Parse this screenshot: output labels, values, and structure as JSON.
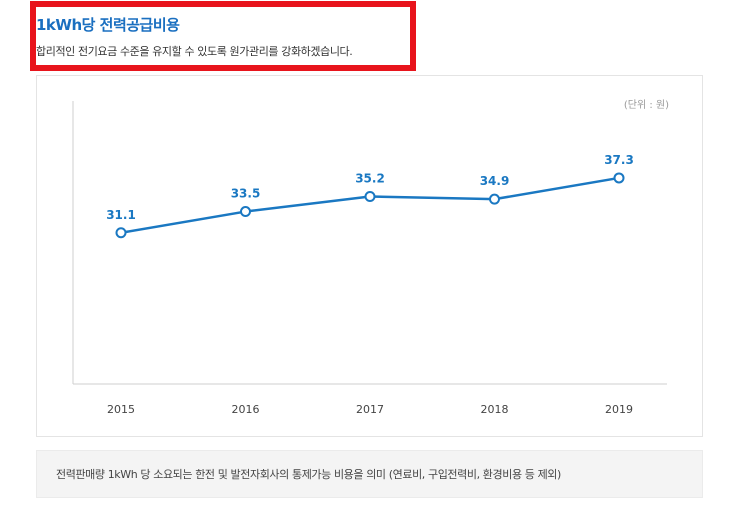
{
  "header": {
    "title": "1kWh당 전력공급비용",
    "subtitle": "합리적인 전기요금 수준을 유지할 수 있도록 원가관리를 강화하겠습니다.",
    "highlight_color": "#e8141c",
    "title_color": "#1a6fc0"
  },
  "chart_data": {
    "type": "line",
    "title": "",
    "unit_label": "(단위 : 원)",
    "categories": [
      "2015",
      "2016",
      "2017",
      "2018",
      "2019"
    ],
    "series": [
      {
        "values": [
          31.1,
          33.5,
          35.2,
          34.9,
          37.3
        ],
        "color": "#1a78c2"
      }
    ],
    "data_labels": [
      "31.1",
      "33.5",
      "35.2",
      "34.9",
      "37.3"
    ],
    "ylim": [
      14,
      46
    ],
    "grid": false,
    "legend": "none"
  },
  "note": {
    "text": "전력판매량 1kWh 당 소요되는 한전 및 발전자회사의 통제가능 비용을 의미 (연료비, 구입전력비, 환경비용 등 제외)"
  }
}
